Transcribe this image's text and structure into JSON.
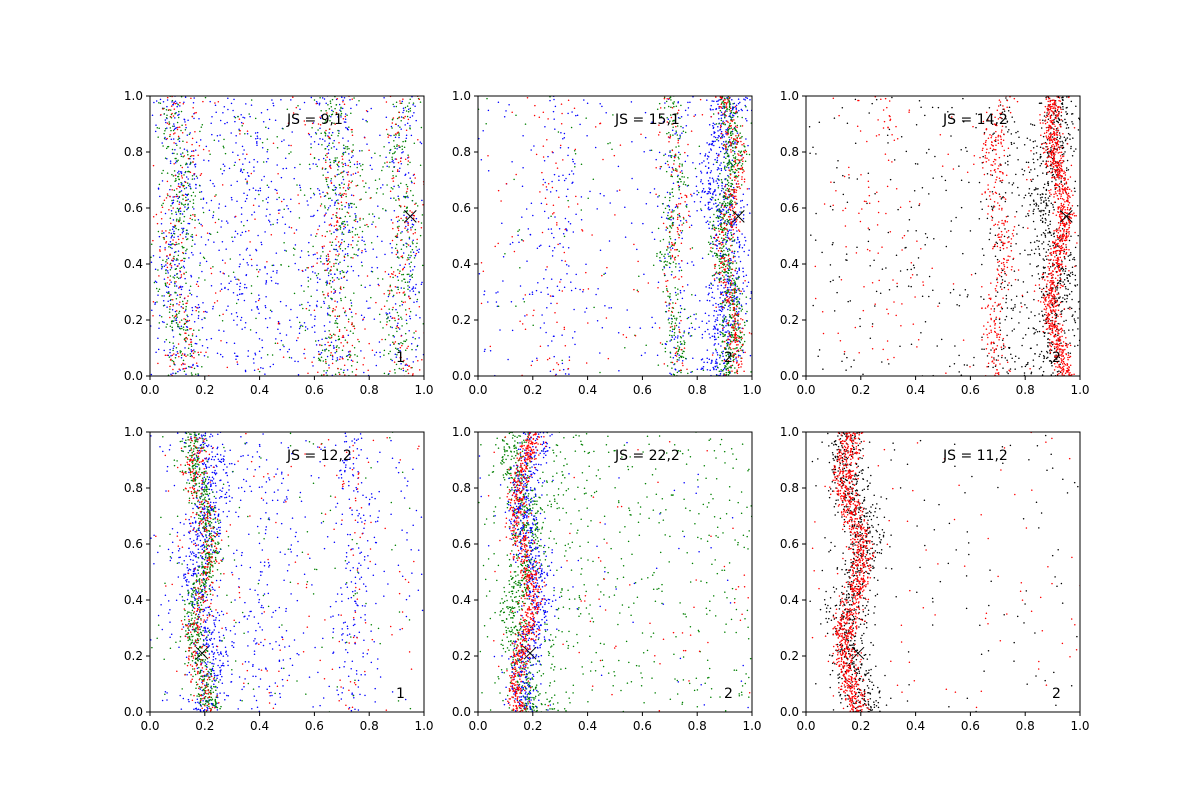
{
  "colors": {
    "blue": "#0000ff",
    "green": "#008000",
    "red": "#ff0000",
    "black": "#000000"
  },
  "chart_data": [
    {
      "type": "scatter",
      "xlim": [
        0,
        1
      ],
      "ylim": [
        0,
        1
      ],
      "x_ticks": [
        "0.0",
        "0.2",
        "0.4",
        "0.6",
        "0.8",
        "1.0"
      ],
      "y_ticks": [
        "0.0",
        "0.2",
        "0.4",
        "0.6",
        "0.8",
        "1.0"
      ],
      "js_label": "JS = 9,1",
      "corner_label": "1",
      "marker": {
        "x": 0.95,
        "y": 0.57
      },
      "series": [
        {
          "color": "blue",
          "bands": [
            {
              "x0": 0.1,
              "amp": 0.025,
              "w": 0.035,
              "n": 260
            },
            {
              "x0": 0.35,
              "amp": 0.03,
              "w": 0.1,
              "n": 250
            },
            {
              "x0": 0.68,
              "amp": 0.025,
              "w": 0.05,
              "n": 200
            },
            {
              "x0": 0.93,
              "amp": 0.02,
              "w": 0.04,
              "n": 150
            }
          ],
          "background": 350
        },
        {
          "color": "green",
          "bands": [
            {
              "x0": 0.1,
              "amp": 0.025,
              "w": 0.03,
              "n": 300
            },
            {
              "x0": 0.68,
              "amp": 0.025,
              "w": 0.045,
              "n": 280
            },
            {
              "x0": 0.92,
              "amp": 0.02,
              "w": 0.03,
              "n": 200
            }
          ],
          "background": 250
        },
        {
          "color": "red",
          "bands": [
            {
              "x0": 0.1,
              "amp": 0.025,
              "w": 0.03,
              "n": 180
            },
            {
              "x0": 0.68,
              "amp": 0.025,
              "w": 0.045,
              "n": 170
            },
            {
              "x0": 0.92,
              "amp": 0.02,
              "w": 0.03,
              "n": 120
            }
          ],
          "background": 160
        }
      ]
    },
    {
      "type": "scatter",
      "xlim": [
        0,
        1
      ],
      "ylim": [
        0,
        1
      ],
      "x_ticks": [
        "0.0",
        "0.2",
        "0.4",
        "0.6",
        "0.8",
        "1.0"
      ],
      "y_ticks": [
        "0.0",
        "0.2",
        "0.4",
        "0.6",
        "0.8",
        "1.0"
      ],
      "js_label": "JS = 15,1",
      "corner_label": "2",
      "marker": {
        "x": 0.95,
        "y": 0.57
      },
      "series": [
        {
          "color": "blue",
          "bands": [
            {
              "x0": 0.9,
              "amp": 0.025,
              "w": 0.04,
              "n": 700
            },
            {
              "x0": 0.72,
              "amp": 0.02,
              "w": 0.03,
              "n": 120
            },
            {
              "x0": 0.3,
              "amp": 0.03,
              "w": 0.06,
              "n": 100
            }
          ],
          "background": 220
        },
        {
          "color": "green",
          "bands": [
            {
              "x0": 0.91,
              "amp": 0.025,
              "w": 0.022,
              "n": 650
            },
            {
              "x0": 0.71,
              "amp": 0.02,
              "w": 0.022,
              "n": 260
            }
          ],
          "background": 80
        },
        {
          "color": "red",
          "bands": [
            {
              "x0": 0.92,
              "amp": 0.025,
              "w": 0.02,
              "n": 380
            },
            {
              "x0": 0.72,
              "amp": 0.02,
              "w": 0.025,
              "n": 110
            },
            {
              "x0": 0.28,
              "amp": 0.03,
              "w": 0.05,
              "n": 60
            }
          ],
          "background": 90
        }
      ]
    },
    {
      "type": "scatter",
      "xlim": [
        0,
        1
      ],
      "ylim": [
        0,
        1
      ],
      "x_ticks": [
        "0.0",
        "0.2",
        "0.4",
        "0.6",
        "0.8",
        "1.0"
      ],
      "y_ticks": [
        "0.0",
        "0.2",
        "0.4",
        "0.6",
        "0.8",
        "1.0"
      ],
      "js_label": "JS = 14,2",
      "corner_label": "2",
      "marker": {
        "x": 0.95,
        "y": 0.57
      },
      "series": [
        {
          "color": "black",
          "bands": [
            {
              "x0": 0.9,
              "amp": 0.025,
              "w": 0.045,
              "n": 650
            },
            {
              "x0": 0.72,
              "amp": 0.02,
              "w": 0.04,
              "n": 150
            }
          ],
          "background": 260
        },
        {
          "color": "red",
          "bands": [
            {
              "x0": 0.92,
              "amp": 0.025,
              "w": 0.018,
              "n": 1000
            },
            {
              "x0": 0.7,
              "amp": 0.02,
              "w": 0.022,
              "n": 300
            },
            {
              "x0": 0.28,
              "amp": 0.03,
              "w": 0.06,
              "n": 60
            }
          ],
          "background": 110
        }
      ]
    },
    {
      "type": "scatter",
      "xlim": [
        0,
        1
      ],
      "ylim": [
        0,
        1
      ],
      "x_ticks": [
        "0.0",
        "0.2",
        "0.4",
        "0.6",
        "0.8",
        "1.0"
      ],
      "y_ticks": [
        "0.0",
        "0.2",
        "0.4",
        "0.6",
        "0.8",
        "1.0"
      ],
      "js_label": "JS = 12,2",
      "corner_label": "1",
      "marker": {
        "x": 0.19,
        "y": 0.21
      },
      "series": [
        {
          "color": "blue",
          "bands": [
            {
              "x0": 0.2,
              "amp": 0.03,
              "w": 0.035,
              "n": 650
            },
            {
              "x0": 0.42,
              "amp": 0.03,
              "w": 0.06,
              "n": 140
            },
            {
              "x0": 0.75,
              "amp": 0.02,
              "w": 0.04,
              "n": 160
            }
          ],
          "background": 250
        },
        {
          "color": "green",
          "bands": [
            {
              "x0": 0.19,
              "amp": 0.03,
              "w": 0.022,
              "n": 700
            }
          ],
          "background": 120
        },
        {
          "color": "red",
          "bands": [
            {
              "x0": 0.19,
              "amp": 0.03,
              "w": 0.025,
              "n": 350
            },
            {
              "x0": 0.75,
              "amp": 0.02,
              "w": 0.04,
              "n": 50
            }
          ],
          "background": 110
        }
      ]
    },
    {
      "type": "scatter",
      "xlim": [
        0,
        1
      ],
      "ylim": [
        0,
        1
      ],
      "x_ticks": [
        "0.0",
        "0.2",
        "0.4",
        "0.6",
        "0.8",
        "1.0"
      ],
      "y_ticks": [
        "0.0",
        "0.2",
        "0.4",
        "0.6",
        "0.8",
        "1.0"
      ],
      "js_label": "JS = 22,2",
      "corner_label": "2",
      "marker": {
        "x": 0.19,
        "y": 0.21
      },
      "series": [
        {
          "color": "green",
          "bands": [
            {
              "x0": 0.16,
              "amp": 0.03,
              "w": 0.03,
              "n": 650
            },
            {
              "x0": 0.3,
              "amp": 0.03,
              "w": 0.05,
              "n": 120
            }
          ],
          "background": 430
        },
        {
          "color": "blue",
          "bands": [
            {
              "x0": 0.19,
              "amp": 0.03,
              "w": 0.03,
              "n": 650
            }
          ],
          "background": 60
        },
        {
          "color": "red",
          "bands": [
            {
              "x0": 0.17,
              "amp": 0.03,
              "w": 0.018,
              "n": 750
            }
          ],
          "background": 70
        }
      ]
    },
    {
      "type": "scatter",
      "xlim": [
        0,
        1
      ],
      "ylim": [
        0,
        1
      ],
      "x_ticks": [
        "0.0",
        "0.2",
        "0.4",
        "0.6",
        "0.8",
        "1.0"
      ],
      "y_ticks": [
        "0.0",
        "0.2",
        "0.4",
        "0.6",
        "0.8",
        "1.0"
      ],
      "js_label": "JS = 11,2",
      "corner_label": "2",
      "marker": {
        "x": 0.19,
        "y": 0.21
      },
      "series": [
        {
          "color": "black",
          "bands": [
            {
              "x0": 0.18,
              "amp": 0.03,
              "w": 0.04,
              "n": 800
            }
          ],
          "background": 110
        },
        {
          "color": "red",
          "bands": [
            {
              "x0": 0.17,
              "amp": 0.03,
              "w": 0.022,
              "n": 1100
            }
          ],
          "background": 80
        }
      ]
    }
  ]
}
